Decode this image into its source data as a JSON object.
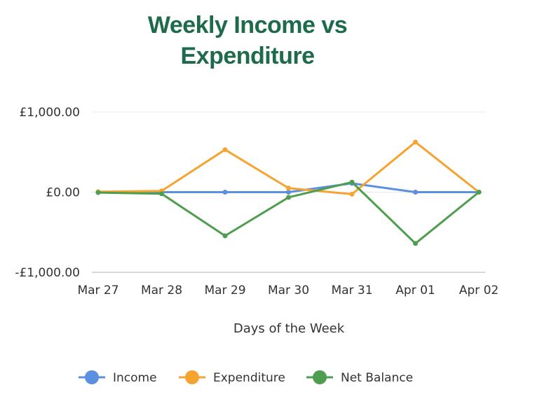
{
  "chart_data": {
    "type": "line",
    "title": "Weekly Income vs Expenditure",
    "xlabel": "Days of the Week",
    "ylabel": "",
    "categories": [
      "Mar 27",
      "Mar 28",
      "Mar 29",
      "Mar 30",
      "Mar 31",
      "Apr 01",
      "Apr 02"
    ],
    "y_ticks": [
      {
        "value": 1000,
        "label": "£1,000.00"
      },
      {
        "value": 0,
        "label": "£0.00"
      },
      {
        "value": -1000,
        "label": "-£1,000.00"
      }
    ],
    "ylim": [
      -1000,
      1000
    ],
    "grid": true,
    "legend_position": "bottom",
    "series": [
      {
        "name": "Income",
        "color": "#5b8fdf",
        "values": [
          0,
          0,
          0,
          0,
          110,
          0,
          0
        ]
      },
      {
        "name": "Expenditure",
        "color": "#f5a431",
        "values": [
          5,
          15,
          530,
          50,
          -25,
          625,
          0
        ]
      },
      {
        "name": "Net Balance",
        "color": "#4f9e4f",
        "values": [
          -5,
          -20,
          -545,
          -65,
          125,
          -640,
          0
        ]
      }
    ]
  }
}
